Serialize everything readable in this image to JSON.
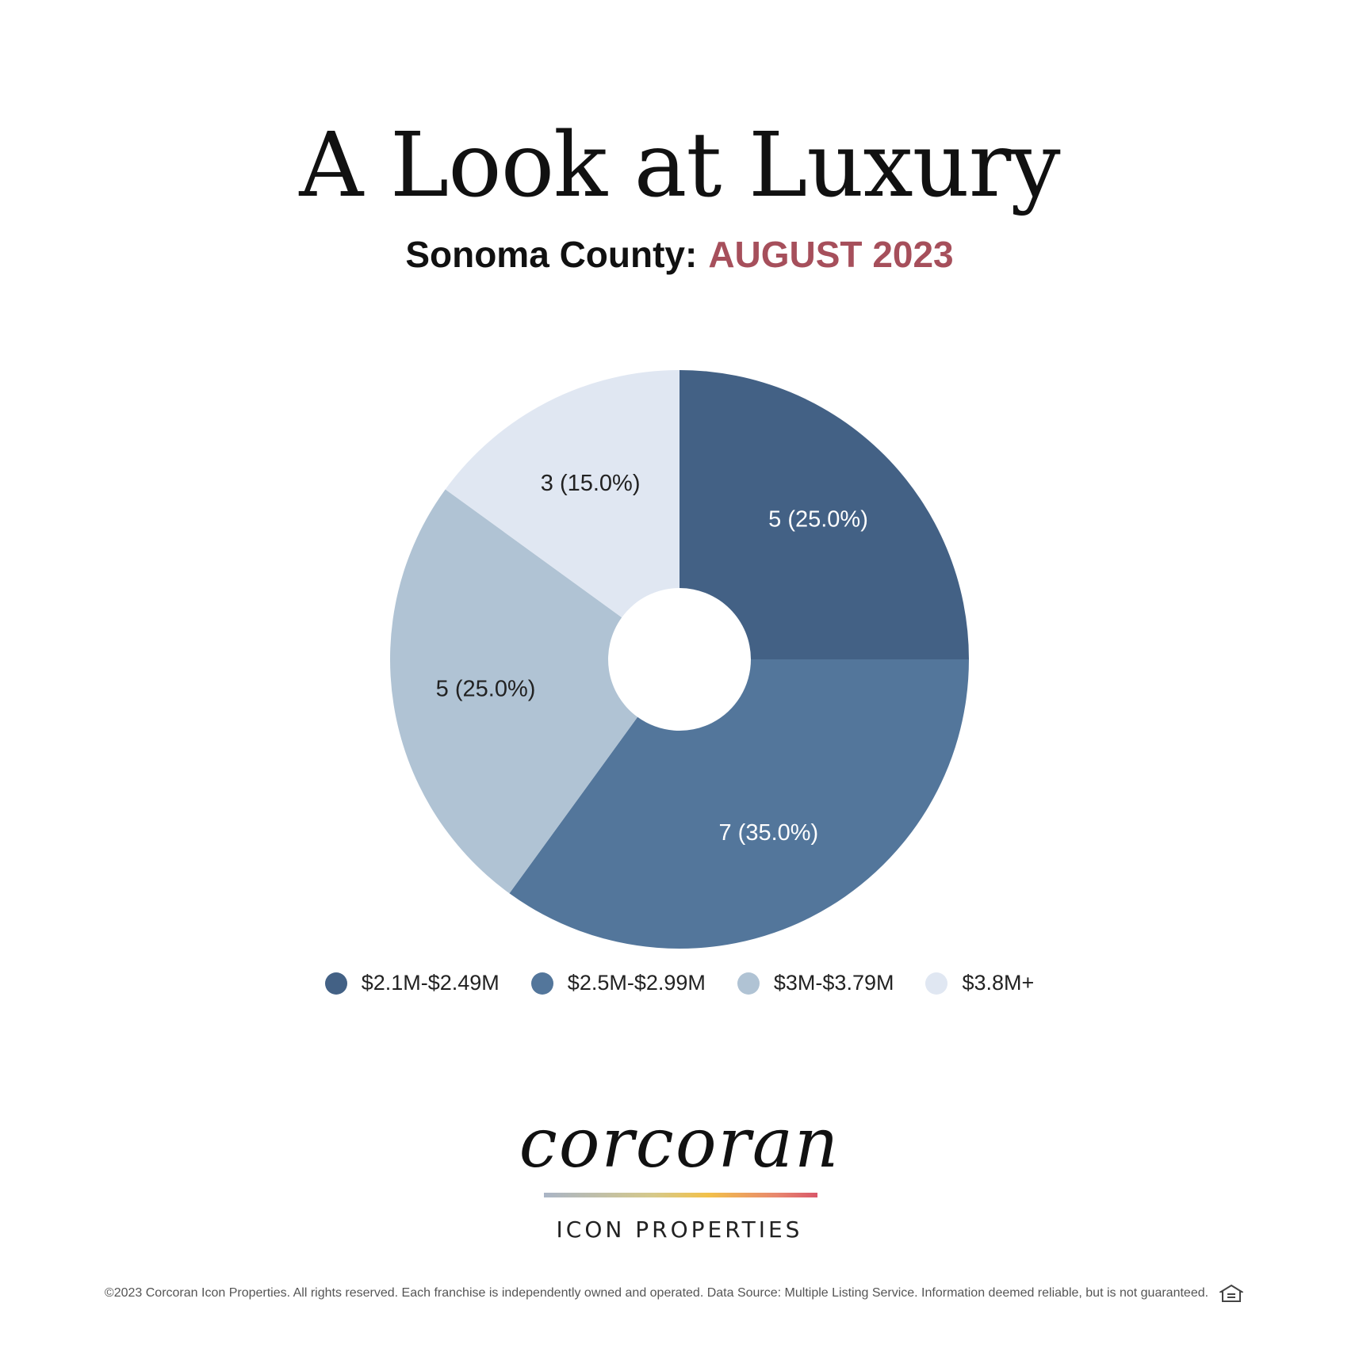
{
  "header": {
    "title": "A Look at Luxury",
    "location": "Sonoma County:",
    "period": "AUGUST 2023"
  },
  "chart_data": {
    "type": "pie",
    "donut": true,
    "categories": [
      "$2.1M-$2.49M",
      "$2.5M-$2.99M",
      "$3M-$3.79M",
      "$3.8M+"
    ],
    "values": [
      5,
      7,
      5,
      3
    ],
    "percents": [
      25.0,
      35.0,
      25.0,
      15.0
    ],
    "labels": [
      "5 (25.0%)",
      "7 (35.0%)",
      "5 (25.0%)",
      "3 (15.0%)"
    ],
    "colors": [
      "#436185",
      "#53769b",
      "#b0c3d4",
      "#e0e7f2"
    ],
    "label_colors": [
      "#ffffff",
      "#ffffff",
      "#222222",
      "#222222"
    ],
    "legend_position": "bottom"
  },
  "logo": {
    "wordmark": "corcoran",
    "subtitle": "ICON PROPERTIES"
  },
  "footer": {
    "disclaimer": "©2023 Corcoran Icon Properties. All rights reserved. Each franchise is independently owned and operated. Data Source: Multiple Listing Service. Information deemed reliable, but is not guaranteed.",
    "icon": "equal-housing-opportunity-icon"
  }
}
